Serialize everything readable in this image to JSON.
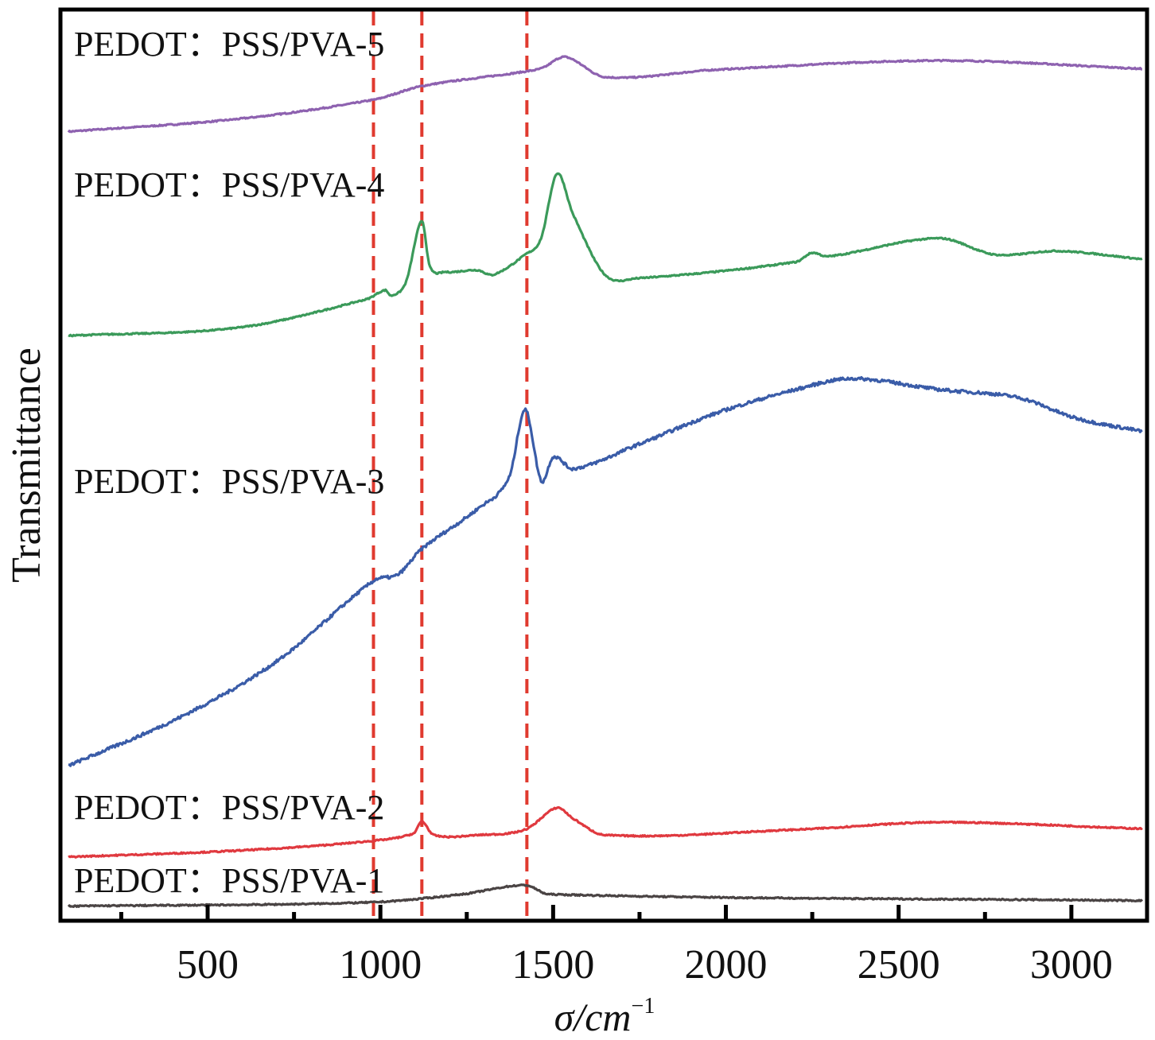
{
  "chart_data": {
    "type": "line",
    "title": "",
    "xlabel": "σ/cm",
    "xlabel_exponent": "−1",
    "ylabel": "Transmittance",
    "xlim": [
      74,
      3219
    ],
    "ylim": [
      0,
      100
    ],
    "y_units": "arbitrary (offset, no tick labels)",
    "grid": false,
    "x_ticks": [
      500,
      1000,
      1500,
      2000,
      2500,
      3000
    ],
    "x_minor_ticks": [
      250,
      750,
      1250,
      1750,
      2250,
      2750
    ],
    "reference_lines": [
      980,
      1120,
      1424
    ],
    "reference_line_color": "#e03a2f",
    "series": [
      {
        "name": "PEDOT：PSS/PVA-5",
        "color": "#8e62b0",
        "points": [
          [
            97,
            86.6
          ],
          [
            590,
            88.0
          ],
          [
            980,
            90.1
          ],
          [
            1120,
            91.6
          ],
          [
            1420,
            93.2
          ],
          [
            1470,
            93.6
          ],
          [
            1535,
            94.8
          ],
          [
            1650,
            92.6
          ],
          [
            1972,
            93.4
          ],
          [
            2617,
            94.4
          ],
          [
            3205,
            93.5
          ]
        ]
      },
      {
        "name": "PEDOT：PSS/PVA-4",
        "color": "#3b9a5a",
        "points": [
          [
            97,
            64.2
          ],
          [
            590,
            65.1
          ],
          [
            959,
            68.2
          ],
          [
            1014,
            69.2
          ],
          [
            1032,
            68.6
          ],
          [
            1074,
            70.1
          ],
          [
            1120,
            76.8
          ],
          [
            1143,
            71.8
          ],
          [
            1189,
            71.2
          ],
          [
            1281,
            71.4
          ],
          [
            1327,
            70.9
          ],
          [
            1419,
            73.1
          ],
          [
            1465,
            74.9
          ],
          [
            1511,
            82.0
          ],
          [
            1558,
            77.5
          ],
          [
            1650,
            70.9
          ],
          [
            1742,
            70.5
          ],
          [
            2203,
            72.3
          ],
          [
            2249,
            73.3
          ],
          [
            2295,
            72.9
          ],
          [
            2617,
            74.9
          ],
          [
            2779,
            73.1
          ],
          [
            2963,
            73.5
          ],
          [
            3205,
            72.6
          ]
        ]
      },
      {
        "name": "PEDOT：PSS/PVA-3",
        "color": "#3a5ca8",
        "points": [
          [
            97,
            17.0
          ],
          [
            429,
            22.5
          ],
          [
            705,
            28.6
          ],
          [
            980,
            37.3
          ],
          [
            1051,
            38.0
          ],
          [
            1120,
            40.8
          ],
          [
            1281,
            45.2
          ],
          [
            1373,
            48.7
          ],
          [
            1419,
            56.1
          ],
          [
            1465,
            48.3
          ],
          [
            1500,
            50.9
          ],
          [
            1558,
            49.6
          ],
          [
            1742,
            52.2
          ],
          [
            1972,
            55.7
          ],
          [
            2203,
            58.3
          ],
          [
            2364,
            59.5
          ],
          [
            2617,
            58.3
          ],
          [
            2848,
            57.4
          ],
          [
            3009,
            55.2
          ],
          [
            3205,
            53.7
          ]
        ]
      },
      {
        "name": "PEDOT：PSS/PVA-2",
        "color": "#e0393f",
        "points": [
          [
            97,
            7.0
          ],
          [
            590,
            7.7
          ],
          [
            959,
            8.7
          ],
          [
            1097,
            9.6
          ],
          [
            1120,
            10.9
          ],
          [
            1154,
            9.4
          ],
          [
            1281,
            9.4
          ],
          [
            1419,
            10.0
          ],
          [
            1511,
            12.4
          ],
          [
            1558,
            11.2
          ],
          [
            1650,
            9.4
          ],
          [
            2203,
            10.0
          ],
          [
            2617,
            10.8
          ],
          [
            3205,
            10.1
          ]
        ]
      },
      {
        "name": "PEDOT：PSS/PVA-1",
        "color": "#4a4444",
        "points": [
          [
            97,
            1.6
          ],
          [
            959,
            2.0
          ],
          [
            1235,
            2.9
          ],
          [
            1419,
            3.9
          ],
          [
            1488,
            2.9
          ],
          [
            3205,
            2.2
          ]
        ]
      }
    ]
  }
}
